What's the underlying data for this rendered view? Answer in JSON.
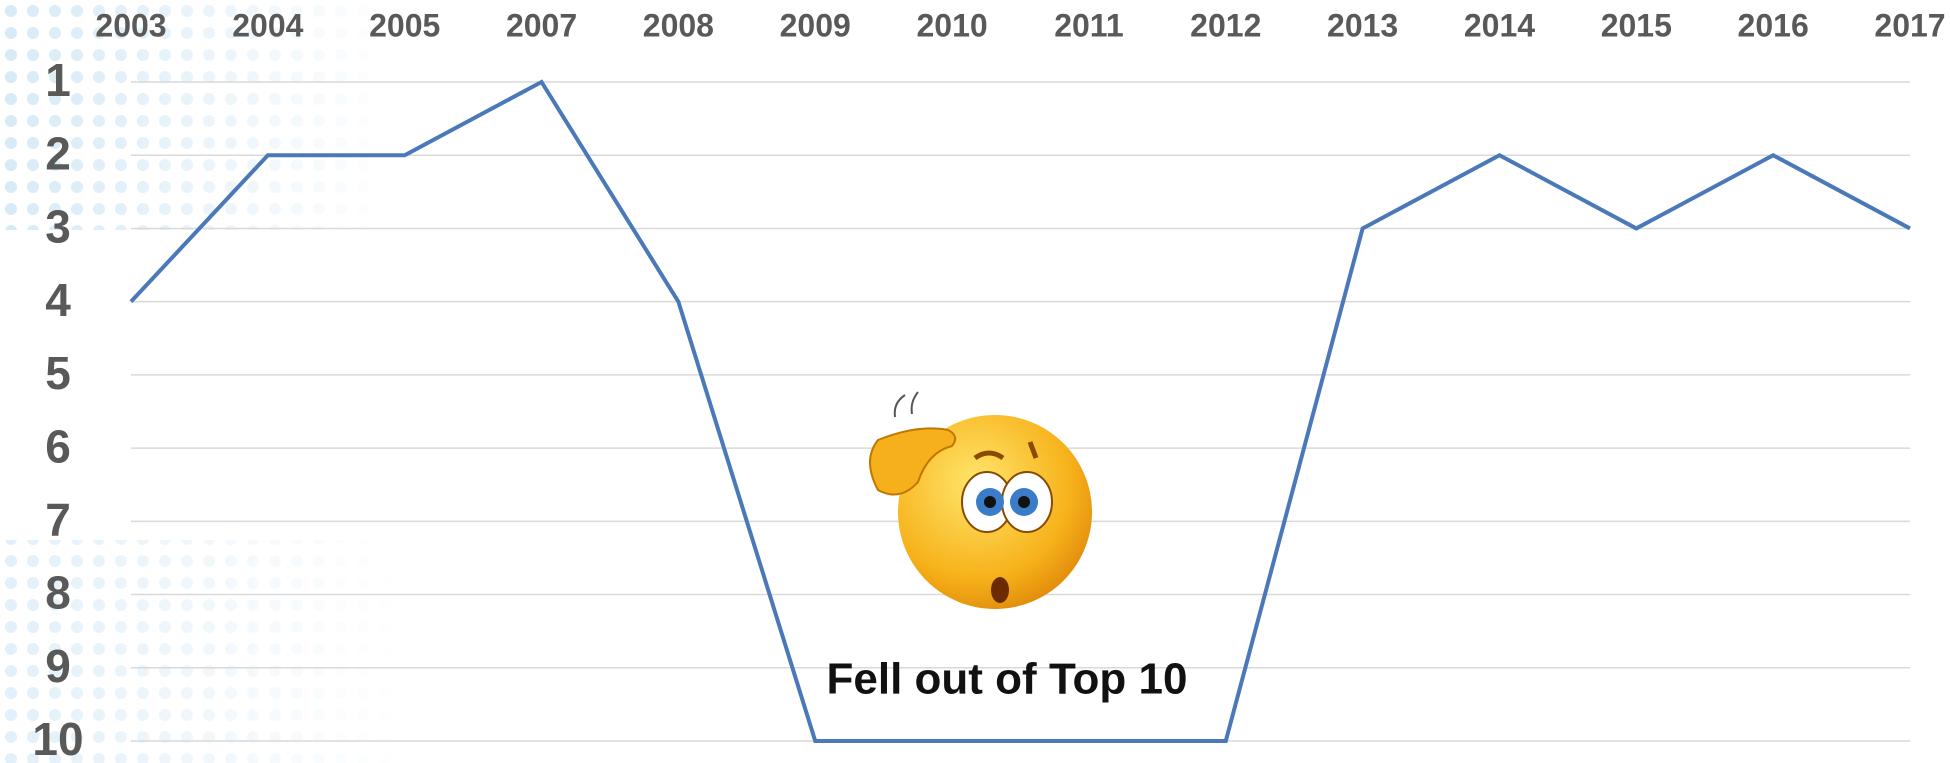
{
  "chart_data": {
    "type": "line",
    "categories": [
      "2003",
      "2004",
      "2005",
      "2007",
      "2008",
      "2009",
      "2010",
      "2011",
      "2012",
      "2013",
      "2014",
      "2015",
      "2016",
      "2017"
    ],
    "series": [
      {
        "color": "#4a78b8",
        "values": [
          4,
          2,
          2,
          1,
          4,
          10,
          10,
          10,
          10,
          3,
          2,
          3,
          2,
          3
        ]
      }
    ],
    "ylim": [
      1,
      10
    ],
    "yticks": [
      1,
      2,
      3,
      4,
      5,
      6,
      7,
      8,
      9,
      10
    ],
    "y_inverted": true,
    "grid": true,
    "annotation": "Fell out of Top 10"
  }
}
